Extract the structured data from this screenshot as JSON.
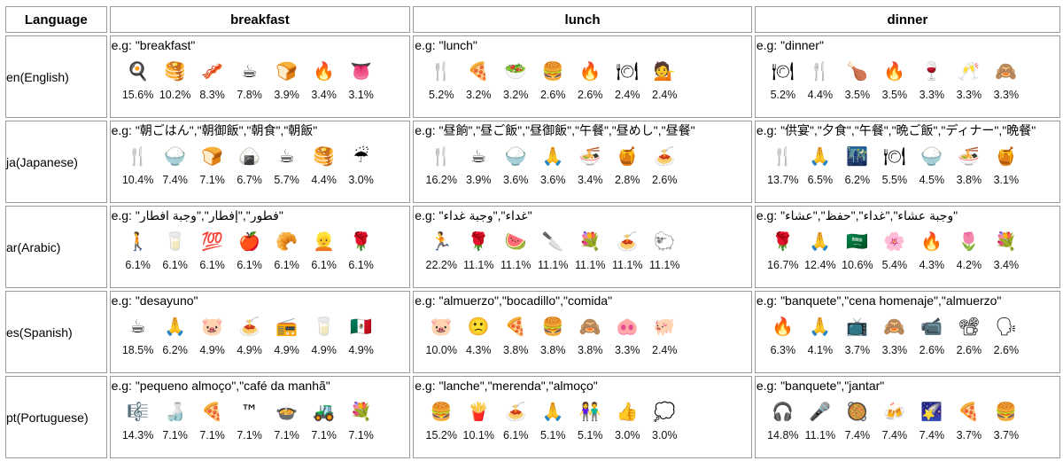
{
  "headers": {
    "language": "Language",
    "breakfast": "breakfast",
    "lunch": "lunch",
    "dinner": "dinner"
  },
  "rows": [
    {
      "lang": "en(English)",
      "breakfast": {
        "eg": "e.g: \"breakfast\"",
        "items": [
          {
            "icon": "🍳",
            "pct": "15.6%"
          },
          {
            "icon": "🥞",
            "pct": "10.2%"
          },
          {
            "icon": "🥓",
            "pct": "8.3%"
          },
          {
            "icon": "☕",
            "pct": "7.8%"
          },
          {
            "icon": "🍞",
            "pct": "3.9%"
          },
          {
            "icon": "🔥",
            "pct": "3.4%"
          },
          {
            "icon": "👅",
            "pct": "3.1%"
          }
        ]
      },
      "lunch": {
        "eg": "e.g: \"lunch\"",
        "items": [
          {
            "icon": "🍴",
            "pct": "5.2%"
          },
          {
            "icon": "🍕",
            "pct": "3.2%"
          },
          {
            "icon": "🥗",
            "pct": "3.2%"
          },
          {
            "icon": "🍔",
            "pct": "2.6%"
          },
          {
            "icon": "🔥",
            "pct": "2.6%"
          },
          {
            "icon": "🍽",
            "pct": "2.4%"
          },
          {
            "icon": "💁",
            "pct": "2.4%"
          }
        ]
      },
      "dinner": {
        "eg": "e.g: \"dinner\"",
        "items": [
          {
            "icon": "🍽",
            "pct": "5.2%"
          },
          {
            "icon": "🍴",
            "pct": "4.4%"
          },
          {
            "icon": "🍗",
            "pct": "3.5%"
          },
          {
            "icon": "🔥",
            "pct": "3.5%"
          },
          {
            "icon": "🍷",
            "pct": "3.3%"
          },
          {
            "icon": "🥂",
            "pct": "3.3%"
          },
          {
            "icon": "🙈",
            "pct": "3.3%"
          }
        ]
      }
    },
    {
      "lang": "ja(Japanese)",
      "breakfast": {
        "eg": "e.g: \"朝ごはん\",\"朝御飯\",\"朝食\",\"朝飯\"",
        "items": [
          {
            "icon": "🍴",
            "pct": "10.4%"
          },
          {
            "icon": "🍚",
            "pct": "7.4%"
          },
          {
            "icon": "🍞",
            "pct": "7.1%"
          },
          {
            "icon": "🍙",
            "pct": "6.7%"
          },
          {
            "icon": "☕",
            "pct": "5.7%"
          },
          {
            "icon": "🥞",
            "pct": "4.4%"
          },
          {
            "icon": "☔",
            "pct": "3.0%"
          }
        ]
      },
      "lunch": {
        "eg": "e.g: \"昼餉\",\"昼ご飯\",\"昼御飯\",\"午餐\",\"昼めし\",\"昼餐\"",
        "items": [
          {
            "icon": "🍴",
            "pct": "16.2%"
          },
          {
            "icon": "☕",
            "pct": "3.9%"
          },
          {
            "icon": "🍚",
            "pct": "3.6%"
          },
          {
            "icon": "🙏",
            "pct": "3.6%"
          },
          {
            "icon": "🍜",
            "pct": "3.4%"
          },
          {
            "icon": "🍯",
            "pct": "2.8%"
          },
          {
            "icon": "🍝",
            "pct": "2.6%"
          }
        ]
      },
      "dinner": {
        "eg": "e.g: \"供宴\",\"夕食\",\"午餐\",\"晩ご飯\",\"ディナー\",\"晩餐\"",
        "items": [
          {
            "icon": "🍴",
            "pct": "13.7%"
          },
          {
            "icon": "🙏",
            "pct": "6.5%"
          },
          {
            "icon": "🌃",
            "pct": "6.2%"
          },
          {
            "icon": "🍽",
            "pct": "5.5%"
          },
          {
            "icon": "🍚",
            "pct": "4.5%"
          },
          {
            "icon": "🍜",
            "pct": "3.8%"
          },
          {
            "icon": "🍯",
            "pct": "3.1%"
          }
        ]
      }
    },
    {
      "lang": "ar(Arabic)",
      "breakfast": {
        "eg": "e.g: \"فطور\",\"إفطار\",\"وجبة افطار\"",
        "items": [
          {
            "icon": "🚶",
            "pct": "6.1%"
          },
          {
            "icon": "🥛",
            "pct": "6.1%"
          },
          {
            "icon": "💯",
            "pct": "6.1%"
          },
          {
            "icon": "🍎",
            "pct": "6.1%"
          },
          {
            "icon": "🥐",
            "pct": "6.1%"
          },
          {
            "icon": "👱",
            "pct": "6.1%"
          },
          {
            "icon": "🌹",
            "pct": "6.1%"
          }
        ]
      },
      "lunch": {
        "eg": "e.g: \"غداء\",\"وجبة غداء\"",
        "items": [
          {
            "icon": "🏃",
            "pct": "22.2%"
          },
          {
            "icon": "🌹",
            "pct": "11.1%"
          },
          {
            "icon": "🍉",
            "pct": "11.1%"
          },
          {
            "icon": "🔪",
            "pct": "11.1%"
          },
          {
            "icon": "💐",
            "pct": "11.1%"
          },
          {
            "icon": "🍝",
            "pct": "11.1%"
          },
          {
            "icon": "🐑",
            "pct": "11.1%"
          }
        ]
      },
      "dinner": {
        "eg": "e.g: \"وجبة عشاء\",\"غداء\",\"حفظ\",\"عشاء\"",
        "items": [
          {
            "icon": "🌹",
            "pct": "16.7%"
          },
          {
            "icon": "🙏",
            "pct": "12.4%"
          },
          {
            "icon": "🇸🇦",
            "pct": "10.6%"
          },
          {
            "icon": "🌸",
            "pct": "5.4%"
          },
          {
            "icon": "🔥",
            "pct": "4.3%"
          },
          {
            "icon": "🌷",
            "pct": "4.2%"
          },
          {
            "icon": "💐",
            "pct": "3.4%"
          }
        ]
      }
    },
    {
      "lang": "es(Spanish)",
      "breakfast": {
        "eg": "e.g: \"desayuno\"",
        "items": [
          {
            "icon": "☕",
            "pct": "18.5%"
          },
          {
            "icon": "🙏",
            "pct": "6.2%"
          },
          {
            "icon": "🐷",
            "pct": "4.9%"
          },
          {
            "icon": "🍝",
            "pct": "4.9%"
          },
          {
            "icon": "📻",
            "pct": "4.9%"
          },
          {
            "icon": "🥛",
            "pct": "4.9%"
          },
          {
            "icon": "🇲🇽",
            "pct": "4.9%"
          }
        ]
      },
      "lunch": {
        "eg": "e.g: \"almuerzo\",\"bocadillo\",\"comida\"",
        "items": [
          {
            "icon": "🐷",
            "pct": "10.0%"
          },
          {
            "icon": "🙁",
            "pct": "4.3%"
          },
          {
            "icon": "🍕",
            "pct": "3.8%"
          },
          {
            "icon": "🍔",
            "pct": "3.8%"
          },
          {
            "icon": "🙈",
            "pct": "3.8%"
          },
          {
            "icon": "🐽",
            "pct": "3.3%"
          },
          {
            "icon": "🐖",
            "pct": "2.4%"
          }
        ]
      },
      "dinner": {
        "eg": "e.g: \"banquete\",\"cena homenaje\",\"almuerzo\"",
        "items": [
          {
            "icon": "🔥",
            "pct": "6.3%"
          },
          {
            "icon": "🙏",
            "pct": "4.1%"
          },
          {
            "icon": "📺",
            "pct": "3.7%"
          },
          {
            "icon": "🙈",
            "pct": "3.3%"
          },
          {
            "icon": "📹",
            "pct": "2.6%"
          },
          {
            "icon": "📽",
            "pct": "2.6%"
          },
          {
            "icon": "🗣",
            "pct": "2.6%"
          }
        ]
      }
    },
    {
      "lang": "pt(Portuguese)",
      "breakfast": {
        "eg": "e.g: \"pequeno almoço\",\"café da manhã\"",
        "items": [
          {
            "icon": "🎼",
            "pct": "14.3%"
          },
          {
            "icon": "🍶",
            "pct": "7.1%"
          },
          {
            "icon": "🍕",
            "pct": "7.1%"
          },
          {
            "icon": "™",
            "pct": "7.1%"
          },
          {
            "icon": "🍲",
            "pct": "7.1%"
          },
          {
            "icon": "🚜",
            "pct": "7.1%"
          },
          {
            "icon": "💐",
            "pct": "7.1%"
          }
        ]
      },
      "lunch": {
        "eg": "e.g: \"lanche\",\"merenda\",\"almoço\"",
        "items": [
          {
            "icon": "🍔",
            "pct": "15.2%"
          },
          {
            "icon": "🍟",
            "pct": "10.1%"
          },
          {
            "icon": "🍝",
            "pct": "6.1%"
          },
          {
            "icon": "🙏",
            "pct": "5.1%"
          },
          {
            "icon": "👫",
            "pct": "5.1%"
          },
          {
            "icon": "👍",
            "pct": "3.0%"
          },
          {
            "icon": "💭",
            "pct": "3.0%"
          }
        ]
      },
      "dinner": {
        "eg": "e.g: \"banquete\",\"jantar\"",
        "items": [
          {
            "icon": "🎧",
            "pct": "14.8%"
          },
          {
            "icon": "🎤",
            "pct": "11.1%"
          },
          {
            "icon": "🥘",
            "pct": "7.4%"
          },
          {
            "icon": "🍻",
            "pct": "7.4%"
          },
          {
            "icon": "🌠",
            "pct": "7.4%"
          },
          {
            "icon": "🍕",
            "pct": "3.7%"
          },
          {
            "icon": "🍔",
            "pct": "3.7%"
          }
        ]
      }
    }
  ]
}
